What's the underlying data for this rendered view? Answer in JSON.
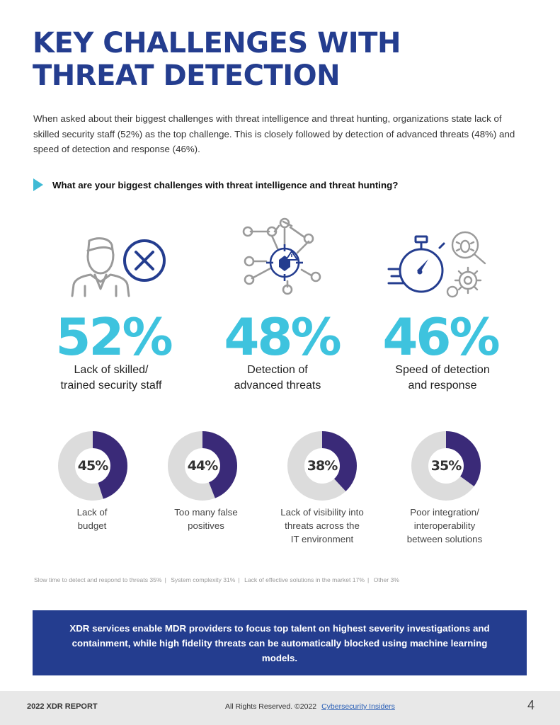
{
  "title": {
    "line1": "KEY CHALLENGES WITH",
    "line2": "THREAT DETECTION"
  },
  "intro": "When asked about their biggest challenges with threat intelligence and threat hunting, organizations state lack of skilled security staff (52%) as the top challenge. This is closely followed by detection of advanced threats (48%) and speed of detection and response (46%).",
  "question": "What are your biggest challenges with threat intelligence and threat hunting?",
  "top_stats": [
    {
      "value": "52%",
      "line1": "Lack of skilled/",
      "line2": "trained security staff",
      "icon": "person-x-icon"
    },
    {
      "value": "48%",
      "line1": "Detection of",
      "line2": "advanced threats",
      "icon": "network-target-icon"
    },
    {
      "value": "46%",
      "line1": "Speed of detection",
      "line2": "and response",
      "icon": "stopwatch-bug-gear-icon"
    }
  ],
  "donuts": [
    {
      "value": "45%",
      "fraction": 0.45,
      "line1": "Lack of",
      "line2": "budget",
      "line3": ""
    },
    {
      "value": "44%",
      "fraction": 0.44,
      "line1": "Too many false",
      "line2": "positives",
      "line3": ""
    },
    {
      "value": "38%",
      "fraction": 0.38,
      "line1": "Lack of visibility into",
      "line2": "threats across the",
      "line3": "IT environment"
    },
    {
      "value": "35%",
      "fraction": 0.35,
      "line1": "Poor integration/",
      "line2": "interoperability",
      "line3": "between solutions"
    }
  ],
  "other": [
    "Slow time to detect and respond to threats 35%",
    "System complexity 31%",
    "Lack of effective solutions in the market 17%",
    "Other 3%"
  ],
  "banner": "XDR services enable MDR providers to focus top talent on highest severity investigations and containment, while high fidelity threats can be automatically blocked using machine learning models.",
  "footer": {
    "report": "2022 XDR REPORT",
    "rights": "All Rights Reserved.  ©2022",
    "link": "Cybersecurity Insiders",
    "page": "4"
  },
  "colors": {
    "navy": "#243d8f",
    "cyan": "#3ec3de",
    "purple": "#3a2a78",
    "gray": "#dcdcdc"
  }
}
